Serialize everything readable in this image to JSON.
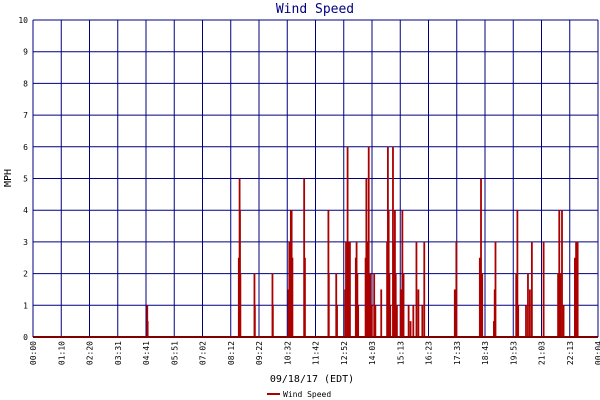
{
  "chart_data": {
    "type": "bar",
    "title": "Wind Speed",
    "xlabel": "09/18/17 (EDT)",
    "ylabel": "MPH",
    "ylim": [
      0,
      10
    ],
    "yticks": [
      "0",
      "1",
      "2",
      "3",
      "4",
      "5",
      "6",
      "7",
      "8",
      "9",
      "10"
    ],
    "xticks": [
      "00:00",
      "01:10",
      "02:20",
      "03:31",
      "04:41",
      "05:51",
      "07:02",
      "08:12",
      "09:22",
      "10:32",
      "11:42",
      "12:52",
      "14:03",
      "15:13",
      "16:23",
      "17:33",
      "18:43",
      "19:53",
      "21:03",
      "22:13",
      "00:04"
    ],
    "grid": true,
    "legend": "bottom-center",
    "series": [
      {
        "name": "Wind Speed",
        "color": "#aa0000",
        "points": [
          [
            "04:52",
            1.0
          ],
          [
            "04:53",
            0.5
          ],
          [
            "08:46",
            2.5
          ],
          [
            "08:48",
            5.0
          ],
          [
            "08:49",
            4.0
          ],
          [
            "08:50",
            2.0
          ],
          [
            "09:26",
            2.0
          ],
          [
            "09:27",
            1.0
          ],
          [
            "10:12",
            2.0
          ],
          [
            "10:13",
            1.0
          ],
          [
            "10:53",
            1.5
          ],
          [
            "10:55",
            3.0
          ],
          [
            "10:57",
            2.0
          ],
          [
            "10:59",
            4.0
          ],
          [
            "11:01",
            4.0
          ],
          [
            "11:03",
            2.5
          ],
          [
            "11:33",
            5.0
          ],
          [
            "11:35",
            2.5
          ],
          [
            "12:35",
            4.0
          ],
          [
            "12:36",
            2.0
          ],
          [
            "12:55",
            2.0
          ],
          [
            "12:57",
            1.0
          ],
          [
            "13:18",
            1.5
          ],
          [
            "13:20",
            3.0
          ],
          [
            "13:24",
            6.0
          ],
          [
            "13:26",
            3.0
          ],
          [
            "13:28",
            1.0
          ],
          [
            "13:30",
            3.0
          ],
          [
            "13:45",
            2.5
          ],
          [
            "13:47",
            3.0
          ],
          [
            "13:49",
            2.0
          ],
          [
            "13:51",
            1.0
          ],
          [
            "14:10",
            2.5
          ],
          [
            "14:12",
            5.0
          ],
          [
            "14:14",
            3.0
          ],
          [
            "14:16",
            1.0
          ],
          [
            "14:18",
            6.0
          ],
          [
            "14:22",
            2.0
          ],
          [
            "14:26",
            1.0
          ],
          [
            "14:32",
            2.0
          ],
          [
            "14:35",
            1.0
          ],
          [
            "14:50",
            1.5
          ],
          [
            "15:05",
            3.0
          ],
          [
            "15:07",
            6.0
          ],
          [
            "15:09",
            4.0
          ],
          [
            "15:11",
            2.0
          ],
          [
            "15:13",
            1.0
          ],
          [
            "15:20",
            6.0
          ],
          [
            "15:23",
            3.0
          ],
          [
            "15:25",
            4.0
          ],
          [
            "15:27",
            2.0
          ],
          [
            "15:30",
            1.0
          ],
          [
            "15:40",
            1.5
          ],
          [
            "15:44",
            4.0
          ],
          [
            "15:47",
            2.0
          ],
          [
            "16:00",
            1.0
          ],
          [
            "16:05",
            0.5
          ],
          [
            "16:12",
            1.0
          ],
          [
            "16:20",
            3.0
          ],
          [
            "16:25",
            1.5
          ],
          [
            "16:35",
            1.0
          ],
          [
            "16:40",
            3.0
          ],
          [
            "17:58",
            1.5
          ],
          [
            "18:02",
            3.0
          ],
          [
            "19:02",
            2.5
          ],
          [
            "19:05",
            5.0
          ],
          [
            "19:08",
            2.0
          ],
          [
            "19:38",
            0.5
          ],
          [
            "19:40",
            1.5
          ],
          [
            "19:42",
            3.0
          ],
          [
            "20:35",
            2.0
          ],
          [
            "20:38",
            4.0
          ],
          [
            "20:40",
            1.0
          ],
          [
            "21:00",
            1.0
          ],
          [
            "21:05",
            2.0
          ],
          [
            "21:10",
            1.5
          ],
          [
            "21:15",
            3.0
          ],
          [
            "21:45",
            3.0
          ],
          [
            "22:22",
            2.0
          ],
          [
            "22:25",
            4.0
          ],
          [
            "22:28",
            2.0
          ],
          [
            "22:32",
            4.0
          ],
          [
            "22:36",
            1.0
          ],
          [
            "23:05",
            2.5
          ],
          [
            "23:08",
            3.0
          ],
          [
            "23:10",
            1.5
          ],
          [
            "23:12",
            3.0
          ]
        ]
      }
    ]
  }
}
